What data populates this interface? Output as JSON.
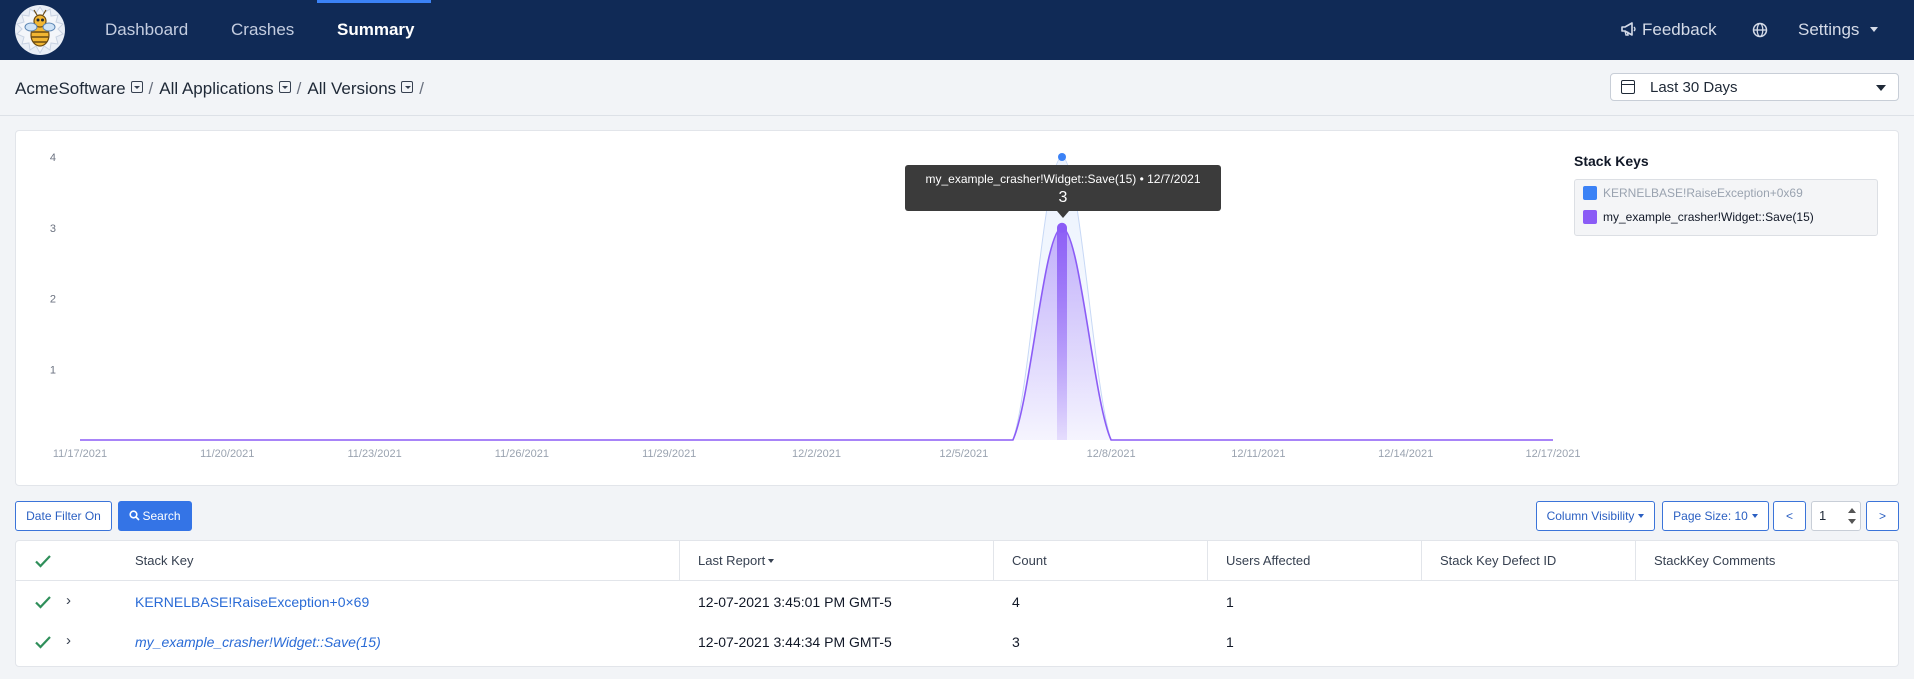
{
  "nav": {
    "links": [
      {
        "label": "Dashboard"
      },
      {
        "label": "Crashes"
      },
      {
        "label": "Summary"
      }
    ],
    "feedback_label": "Feedback",
    "settings_label": "Settings"
  },
  "breadcrumb": {
    "items": [
      "AcmeSoftware",
      "All Applications",
      "All Versions"
    ]
  },
  "date_range": {
    "selected": "Last 30 Days"
  },
  "legend": {
    "title": "Stack Keys",
    "items": [
      "KERNELBASE!RaiseException+0x69",
      "my_example_crasher!Widget::Save(15)"
    ]
  },
  "tooltip": {
    "title": "my_example_crasher!Widget::Save(15) • 12/7/2021",
    "value": "3"
  },
  "chart_data": {
    "type": "area",
    "x": [
      "11/17/2021",
      "11/18/2021",
      "11/19/2021",
      "11/20/2021",
      "11/21/2021",
      "11/22/2021",
      "11/23/2021",
      "11/24/2021",
      "11/25/2021",
      "11/26/2021",
      "11/27/2021",
      "11/28/2021",
      "11/29/2021",
      "11/30/2021",
      "12/1/2021",
      "12/2/2021",
      "12/3/2021",
      "12/4/2021",
      "12/5/2021",
      "12/6/2021",
      "12/7/2021",
      "12/8/2021",
      "12/9/2021",
      "12/10/2021",
      "12/11/2021",
      "12/12/2021",
      "12/13/2021",
      "12/14/2021",
      "12/15/2021",
      "12/16/2021",
      "12/17/2021"
    ],
    "x_ticks": [
      "11/17/2021",
      "11/20/2021",
      "11/23/2021",
      "11/26/2021",
      "11/29/2021",
      "12/2/2021",
      "12/5/2021",
      "12/8/2021",
      "12/11/2021",
      "12/14/2021",
      "12/17/2021"
    ],
    "y_ticks": [
      1,
      2,
      3,
      4
    ],
    "ylim": [
      0,
      4
    ],
    "series": [
      {
        "name": "KERNELBASE!RaiseException+0x69",
        "color": "#3b82f6",
        "hidden": true,
        "values": [
          0,
          0,
          0,
          0,
          0,
          0,
          0,
          0,
          0,
          0,
          0,
          0,
          0,
          0,
          0,
          0,
          0,
          0,
          0,
          0,
          4,
          0,
          0,
          0,
          0,
          0,
          0,
          0,
          0,
          0,
          0
        ]
      },
      {
        "name": "my_example_crasher!Widget::Save(15)",
        "color": "#8b5cf6",
        "hidden": false,
        "values": [
          0,
          0,
          0,
          0,
          0,
          0,
          0,
          0,
          0,
          0,
          0,
          0,
          0,
          0,
          0,
          0,
          0,
          0,
          0,
          0,
          3,
          0,
          0,
          0,
          0,
          0,
          0,
          0,
          0,
          0,
          0
        ]
      }
    ],
    "highlighted_index": 20,
    "legend_position": "top-right",
    "grid": false
  },
  "toolbar": {
    "date_filter_label": "Date Filter On",
    "search_label": "Search",
    "column_visibility_label": "Column Visibility",
    "page_size_label": "Page Size: 10",
    "prev_label": "<",
    "next_label": ">",
    "page_value": "1"
  },
  "table": {
    "columns": [
      "Stack Key",
      "Last Report",
      "Count",
      "Users Affected",
      "Stack Key Defect ID",
      "StackKey Comments"
    ],
    "rows": [
      {
        "stack_key": "KERNELBASE!RaiseException+0×69",
        "last_report": "12-07-2021 3:45:01 PM GMT-5",
        "count": "4",
        "users": "1",
        "defect_id": "",
        "comments": ""
      },
      {
        "stack_key": "my_example_crasher!Widget::Save(15)",
        "last_report": "12-07-2021 3:44:34 PM GMT-5",
        "count": "3",
        "users": "1",
        "defect_id": "",
        "comments": ""
      }
    ]
  },
  "colors": {
    "nav_bg": "#102a56",
    "primary": "#3474e6",
    "check": "#2f8f5a"
  }
}
